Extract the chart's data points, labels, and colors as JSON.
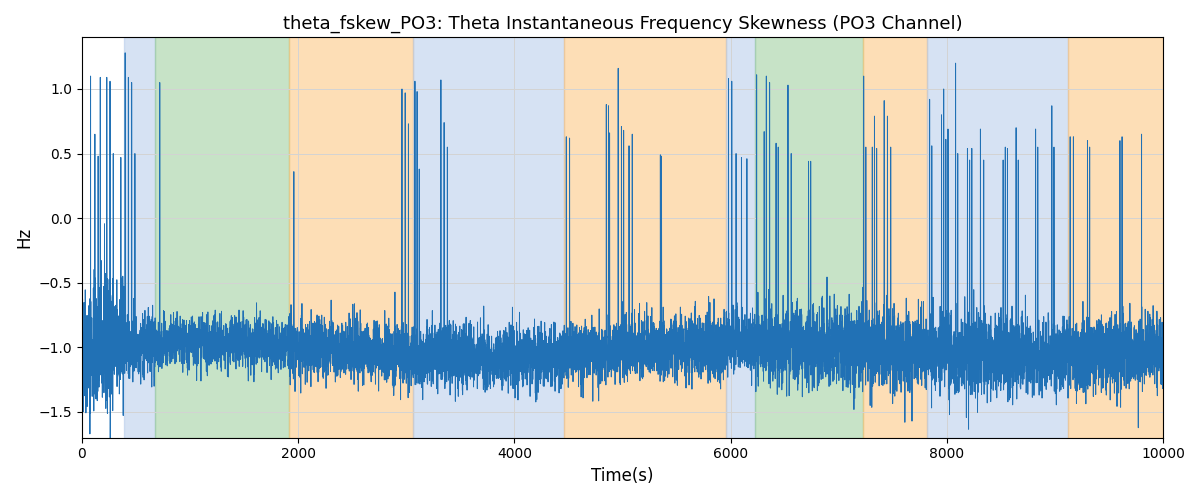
{
  "title": "theta_fskew_PO3: Theta Instantaneous Frequency Skewness (PO3 Channel)",
  "xlabel": "Time(s)",
  "ylabel": "Hz",
  "xlim": [
    0,
    10000
  ],
  "ylim": [
    -1.7,
    1.4
  ],
  "yticks": [
    -1.5,
    -1.0,
    -0.5,
    0.0,
    0.5,
    1.0
  ],
  "xticks": [
    0,
    2000,
    4000,
    6000,
    8000,
    10000
  ],
  "line_color": "#2171b5",
  "background_regions": [
    {
      "xmin": 390,
      "xmax": 680,
      "color": "#AEC6E8",
      "alpha": 0.5
    },
    {
      "xmin": 680,
      "xmax": 1920,
      "color": "#90C890",
      "alpha": 0.5
    },
    {
      "xmin": 1920,
      "xmax": 3060,
      "color": "#FDBF6F",
      "alpha": 0.5
    },
    {
      "xmin": 3060,
      "xmax": 4460,
      "color": "#AEC6E8",
      "alpha": 0.5
    },
    {
      "xmin": 4460,
      "xmax": 5960,
      "color": "#FDBF6F",
      "alpha": 0.5
    },
    {
      "xmin": 5960,
      "xmax": 6230,
      "color": "#AEC6E8",
      "alpha": 0.5
    },
    {
      "xmin": 6230,
      "xmax": 7220,
      "color": "#90C890",
      "alpha": 0.5
    },
    {
      "xmin": 7220,
      "xmax": 7820,
      "color": "#FDBF6F",
      "alpha": 0.5
    },
    {
      "xmin": 7820,
      "xmax": 9120,
      "color": "#AEC6E8",
      "alpha": 0.5
    },
    {
      "xmin": 9120,
      "xmax": 10000,
      "color": "#FDBF6F",
      "alpha": 0.5
    }
  ],
  "seed": 42,
  "n_points": 10000,
  "figsize": [
    12,
    5
  ],
  "dpi": 100
}
